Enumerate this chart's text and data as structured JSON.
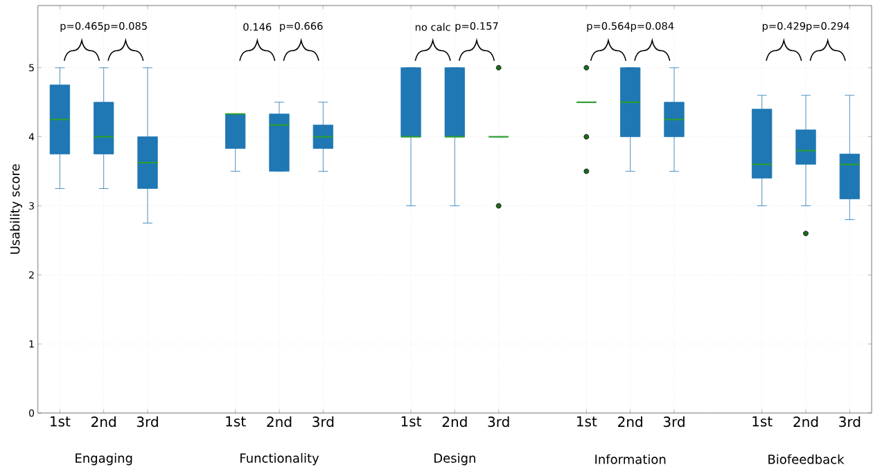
{
  "chart_data": {
    "type": "box",
    "ylabel": "Usability score",
    "categories": [
      "1st",
      "2nd",
      "3rd",
      null,
      "1st",
      "2nd",
      "3rd",
      null,
      "1st",
      "2nd",
      "3rd",
      null,
      "1st",
      "2nd",
      "3rd",
      null,
      "1st",
      "2nd",
      "3rd"
    ],
    "boxes": [
      {
        "low": 3.25,
        "q1": 3.75,
        "median": 4.25,
        "q3": 4.75,
        "high": 5
      },
      {
        "low": 3.25,
        "q1": 3.75,
        "median": 4.0,
        "q3": 4.5,
        "high": 5
      },
      {
        "low": 2.75,
        "q1": 3.25,
        "median": 3.625,
        "q3": 4.0,
        "high": 5
      },
      null,
      {
        "low": 3.5,
        "q1": 3.83,
        "median": 4.33,
        "q3": 4.33,
        "high": 4.33
      },
      {
        "low": 3.5,
        "q1": 3.5,
        "median": 4.17,
        "q3": 4.33,
        "high": 4.5
      },
      {
        "low": 3.5,
        "q1": 3.83,
        "median": 4.0,
        "q3": 4.17,
        "high": 4.5
      },
      null,
      {
        "low": 3,
        "q1": 4,
        "median": 4,
        "q3": 5,
        "high": 5
      },
      {
        "low": 3,
        "q1": 4,
        "median": 4,
        "q3": 5,
        "high": 5
      },
      {
        "low": 4,
        "q1": 4,
        "median": 4,
        "q3": 4,
        "high": 4,
        "outliers": [
          5,
          3
        ]
      },
      null,
      {
        "low": 4.5,
        "q1": 4.5,
        "median": 4.5,
        "q3": 4.5,
        "high": 4.5,
        "outliers": [
          5,
          4,
          3.5
        ]
      },
      {
        "low": 3.5,
        "q1": 4,
        "median": 4.5,
        "q3": 5,
        "high": 5
      },
      {
        "low": 3.5,
        "q1": 4,
        "median": 4.25,
        "q3": 4.5,
        "high": 5
      },
      null,
      {
        "low": 3.0,
        "q1": 3.4,
        "median": 3.6,
        "q3": 4.4,
        "high": 4.6
      },
      {
        "low": 3.0,
        "q1": 3.6,
        "median": 3.8,
        "q3": 4.1,
        "high": 4.6,
        "outliers": [
          2.6
        ]
      },
      {
        "low": 2.8,
        "q1": 3.1,
        "median": 3.6,
        "q3": 3.75,
        "high": 4.6
      }
    ],
    "color": "#1f77b4",
    "ylim": [
      0,
      5.9
    ],
    "yticks": [
      0,
      1,
      2,
      3,
      4,
      5
    ],
    "grid": true,
    "annotations": [
      "p=0.465",
      "p=0.085",
      "0.146",
      "p=0.666",
      "no calc",
      "p=0.157",
      "p=0.564",
      "p=0.084",
      "p=0.429",
      "p=0.294",
      "Engaging",
      "Functionality",
      "Design",
      "Information",
      "Biofeedback"
    ]
  }
}
